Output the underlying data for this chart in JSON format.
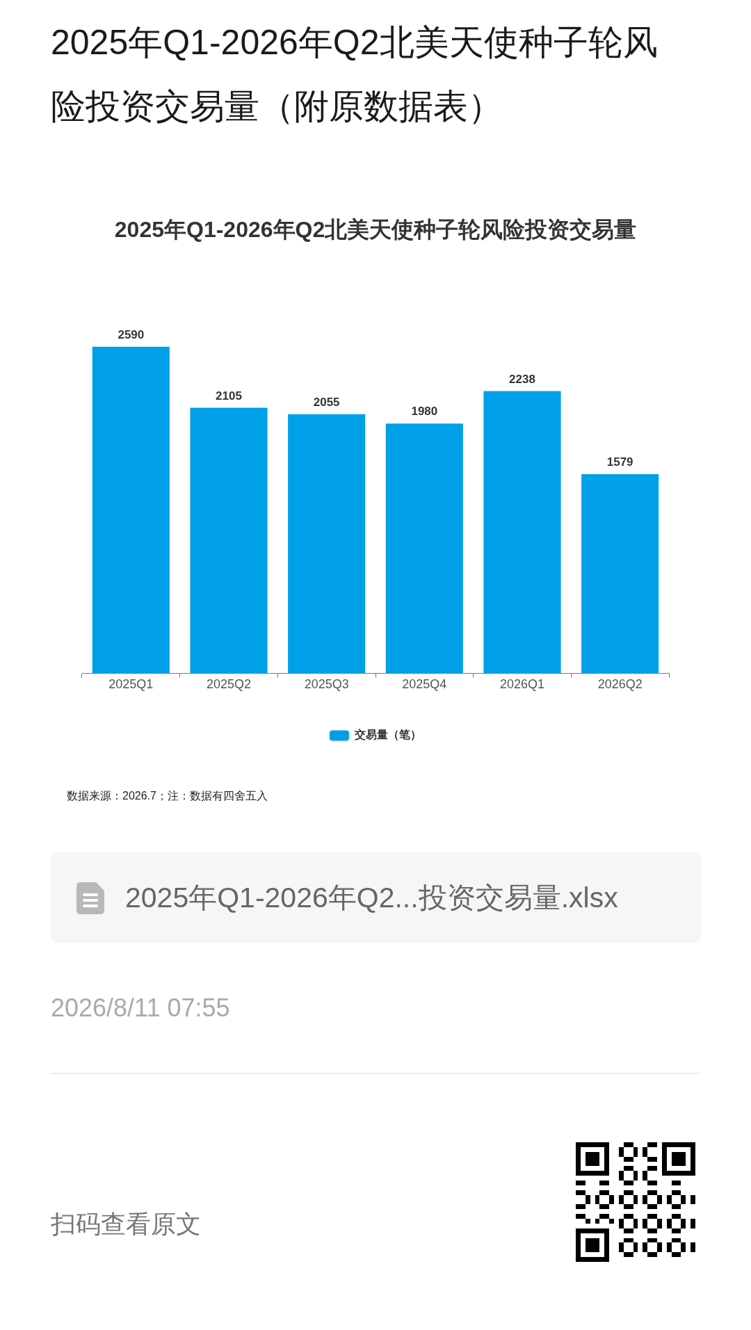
{
  "chart_data": {
    "type": "bar",
    "title": "2025年Q1-2026年Q2北美天使种子轮风险投资交易量（附原数据表）",
    "subtitle": "2025年Q1-2026年Q2北美天使种子轮风险投资交易量",
    "categories": [
      "2025Q1",
      "2025Q2",
      "2025Q3",
      "2025Q4",
      "2026Q1",
      "2026Q2"
    ],
    "series": [
      {
        "name": "交易量（笔）",
        "color": "#00a0e9",
        "values": [
          2590,
          2105,
          2055,
          1980,
          2238,
          1579
        ]
      }
    ],
    "data_labels": true,
    "legend": "bottom",
    "tick_labels": "x",
    "annotations": [
      "数据来源：2026.7；注：数据有四舍五入",
      "2025年Q1-2026年Q2...投资交易量.xlsx",
      "2026/8/11 07:55",
      "扫码查看原文"
    ]
  }
}
